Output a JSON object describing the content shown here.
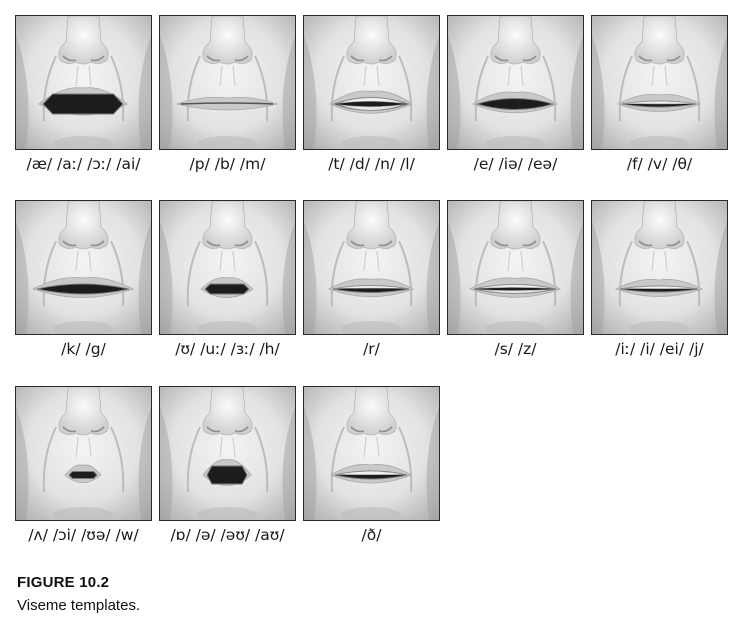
{
  "figure": {
    "label": "FIGURE 10.2",
    "caption": "Viseme templates."
  },
  "visemes": [
    {
      "label": "/æ/ /aː/ /ɔː/ /ai/",
      "mouth": "open-wide"
    },
    {
      "label": "/p/ /b/ /m/",
      "mouth": "closed"
    },
    {
      "label": "/t/ /d/ /n/ /l/",
      "mouth": "teeth-open"
    },
    {
      "label": "/e/ /iə/ /eə/",
      "mouth": "open-mid"
    },
    {
      "label": "/f/ /v/ /θ/",
      "mouth": "teeth-lip"
    },
    {
      "label": "/k/ /g/",
      "mouth": "open-narrow"
    },
    {
      "label": "/ʊ/ /uː/ /ɜː/ /h/",
      "mouth": "rounded-small"
    },
    {
      "label": "/r/",
      "mouth": "slight-open"
    },
    {
      "label": "/s/ /z/",
      "mouth": "teeth-wide"
    },
    {
      "label": "/iː/ /i/ /ei/ /j/",
      "mouth": "spread-thin"
    },
    {
      "label": "/ʌ/ /ɔi/ /ʊə/ /w/",
      "mouth": "pucker-small"
    },
    {
      "label": "/ɒ/ /ə/ /əʊ/ /aʊ/",
      "mouth": "pucker-open"
    },
    {
      "label": "/ð/",
      "mouth": "teeth-mid"
    }
  ]
}
